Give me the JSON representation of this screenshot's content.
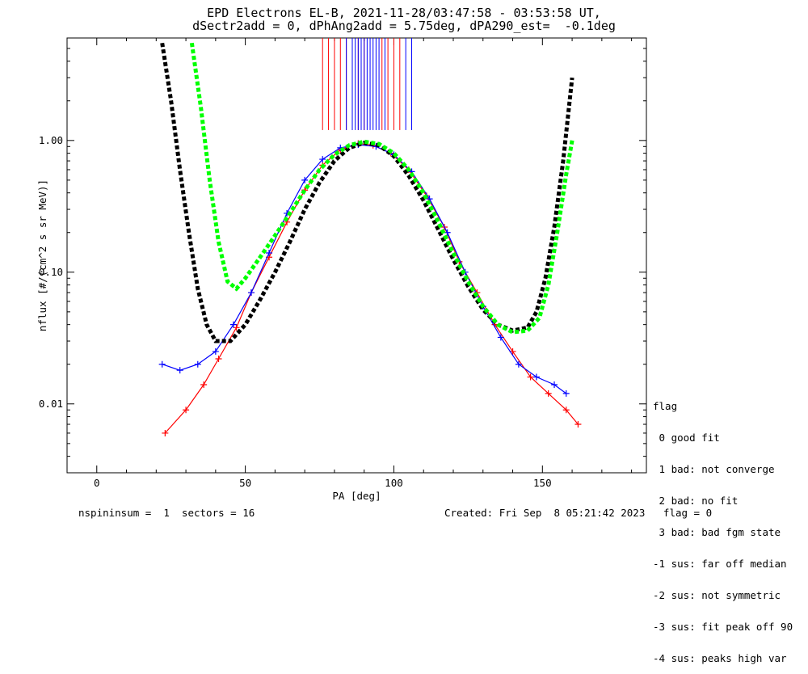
{
  "title_line1": "EPD Electrons EL-B, 2021-11-28/03:47:58 - 03:53:58 UT,",
  "title_line2": "dSectr2add = 0, dPhAng2add = 5.75deg, dPA290_est=  -0.1deg",
  "footer_left": "nspininsum =  1  sectors = 16",
  "footer_right": "Created: Fri Sep  8 05:21:42 2023   flag = 0",
  "legend": {
    "heading": "flag",
    "items": [
      " 0 good fit",
      " 1 bad: not converge",
      " 2 bad: no fit",
      " 3 bad: bad fgm state",
      "-1 sus: far off median",
      "-2 sus: not symmetric",
      "-3 sus: fit peak off 90",
      "-4 sus: peaks high var"
    ]
  },
  "colors": {
    "series_red": "#ff0000",
    "series_blue": "#0000ff",
    "fit_black": "#000000",
    "fit_green": "#00ff00"
  },
  "chart_data": {
    "type": "line",
    "xlabel": "PA [deg]",
    "ylabel": "nflux [#/(cm^2 s sr MeV)]",
    "xlim": [
      -10,
      185
    ],
    "ylim": [
      0.003,
      6.0
    ],
    "yscale": "log",
    "xticks": [
      0,
      50,
      100,
      150
    ],
    "yticks": [
      0.01,
      0.1,
      1.0
    ],
    "ytick_labels": [
      "0.01",
      "0.10",
      "1.00"
    ],
    "series": [
      {
        "color": "red",
        "x": [
          23,
          30,
          36,
          41,
          47,
          52,
          58,
          64,
          70,
          76,
          82,
          88,
          93,
          99,
          105,
          111,
          117,
          122,
          128,
          134,
          140,
          146,
          152,
          158,
          162
        ],
        "y": [
          0.006,
          0.009,
          0.014,
          0.022,
          0.038,
          0.07,
          0.13,
          0.24,
          0.42,
          0.65,
          0.85,
          0.95,
          0.92,
          0.8,
          0.6,
          0.38,
          0.22,
          0.12,
          0.07,
          0.04,
          0.025,
          0.016,
          0.012,
          0.009,
          0.007
        ]
      },
      {
        "color": "blue",
        "x": [
          22,
          28,
          34,
          40,
          46,
          52,
          58,
          64,
          70,
          76,
          82,
          88,
          94,
          100,
          106,
          112,
          118,
          124,
          130,
          136,
          142,
          148,
          154,
          158
        ],
        "y": [
          0.02,
          0.018,
          0.02,
          0.025,
          0.04,
          0.07,
          0.14,
          0.28,
          0.5,
          0.72,
          0.88,
          0.93,
          0.9,
          0.78,
          0.58,
          0.36,
          0.2,
          0.1,
          0.055,
          0.032,
          0.02,
          0.016,
          0.014,
          0.012
        ]
      },
      {
        "color": "black",
        "name": "",
        "x": [
          22,
          25,
          28,
          31,
          34,
          37,
          40,
          45,
          50,
          55,
          60,
          65,
          70,
          75,
          80,
          85,
          90,
          95,
          100,
          105,
          110,
          115,
          120,
          125,
          130,
          135,
          140,
          145,
          148,
          151,
          154,
          157,
          160
        ],
        "y": [
          5.5,
          2.0,
          0.6,
          0.2,
          0.075,
          0.04,
          0.03,
          0.03,
          0.04,
          0.062,
          0.1,
          0.17,
          0.3,
          0.48,
          0.7,
          0.88,
          0.96,
          0.92,
          0.76,
          0.54,
          0.35,
          0.21,
          0.125,
          0.078,
          0.052,
          0.04,
          0.036,
          0.038,
          0.05,
          0.09,
          0.22,
          0.7,
          3.0
        ]
      },
      {
        "color": "green",
        "name": "",
        "x": [
          32,
          35,
          38,
          41,
          44,
          47,
          50,
          55,
          60,
          65,
          70,
          75,
          80,
          85,
          90,
          95,
          100,
          105,
          110,
          115,
          120,
          125,
          130,
          135,
          140,
          145,
          149,
          152,
          155,
          158,
          160
        ],
        "y": [
          5.5,
          1.8,
          0.5,
          0.17,
          0.085,
          0.075,
          0.09,
          0.13,
          0.19,
          0.28,
          0.42,
          0.6,
          0.78,
          0.92,
          0.98,
          0.94,
          0.8,
          0.6,
          0.4,
          0.24,
          0.14,
          0.085,
          0.055,
          0.04,
          0.035,
          0.036,
          0.045,
          0.08,
          0.2,
          0.55,
          1.0
        ]
      }
    ],
    "vertical_lines_red_x": [
      76,
      78,
      80,
      82,
      84,
      86,
      88,
      90,
      96,
      98,
      100,
      102
    ],
    "vertical_lines_blue_x": [
      84,
      86,
      87,
      88,
      89,
      90,
      91,
      92,
      93,
      94,
      95,
      97,
      104,
      106
    ],
    "vertical_lines_ylim": [
      1.2,
      6.0
    ]
  }
}
